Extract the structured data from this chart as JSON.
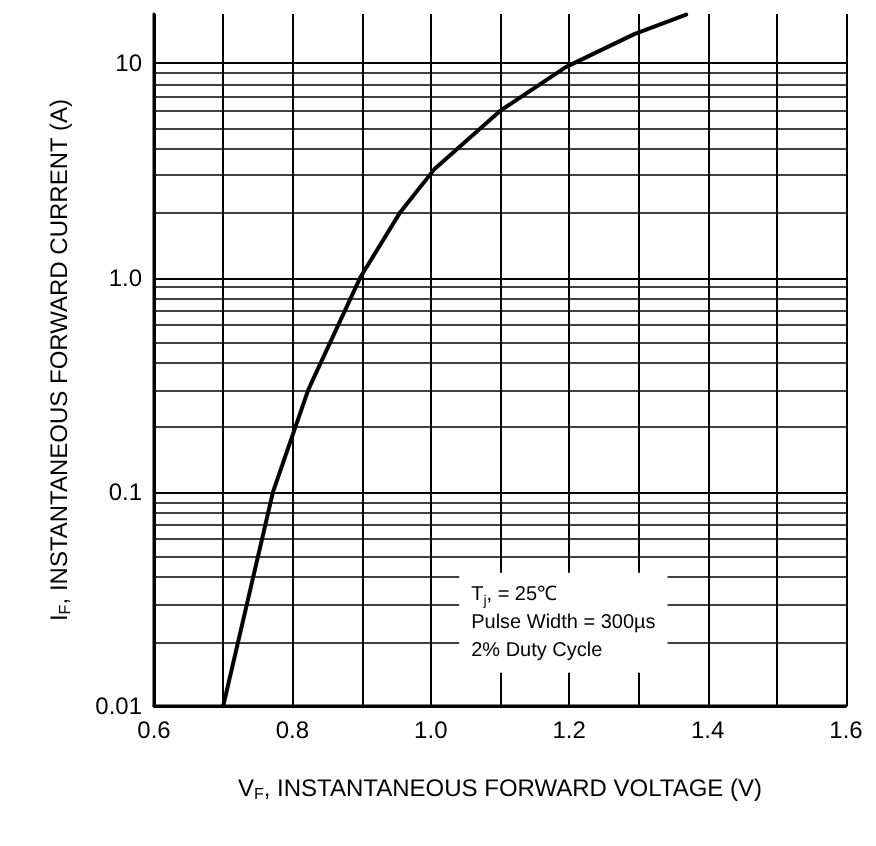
{
  "chart_data": {
    "type": "line",
    "xlabel": "V$_{F}$, INSTANTANEOUS FORWARD VOLTAGE (V)",
    "ylabel": "I$_{F}$, INSTANTANEOUS FORWARD CURRENT (A)",
    "x": [
      0.7,
      0.772,
      0.823,
      0.898,
      0.955,
      1.005,
      1.1,
      1.195,
      1.294,
      1.369
    ],
    "series": [
      {
        "color": "#000000",
        "values": [
          0.01,
          0.1,
          0.3,
          1.0,
          2.0,
          3.2,
          6.0,
          9.6,
          13.7,
          16.9
        ]
      }
    ],
    "xlim": [
      0.6,
      1.6
    ],
    "xticks": [
      0.6,
      {
        "value": 0.7,
        "label": null
      },
      0.8,
      {
        "value": 0.9,
        "label": null
      },
      {
        "value": 1.0,
        "label": "1.0"
      },
      {
        "value": 1.1,
        "label": null
      },
      1.2,
      {
        "value": 1.3,
        "label": null
      },
      1.4,
      {
        "value": 1.5,
        "label": null
      },
      1.6
    ],
    "ylim": [
      0.01,
      17
    ],
    "yticks": [
      0.01,
      0.1,
      {
        "value": 1,
        "label": "1.0"
      },
      10
    ],
    "log": "y",
    "grid": true,
    "marker": "none",
    "line_style": "solid",
    "annotations": [
      "T$_{j}$, = 25℃",
      "Pulse Width = 300µs",
      "2% Duty Cycle"
    ]
  }
}
